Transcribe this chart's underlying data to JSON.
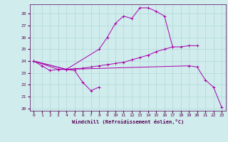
{
  "background_color": "#d0ecec",
  "grid_color": "#b0d8d8",
  "line_color": "#aa00aa",
  "xlabel": "Windchill (Refroidissement éolien,°C)",
  "xlim": [
    -0.5,
    23.5
  ],
  "ylim": [
    19.8,
    28.8
  ],
  "yticks": [
    20,
    21,
    22,
    23,
    24,
    25,
    26,
    27,
    28
  ],
  "xticks": [
    0,
    1,
    2,
    3,
    4,
    5,
    6,
    7,
    8,
    9,
    10,
    11,
    12,
    13,
    14,
    15,
    16,
    17,
    18,
    19,
    20,
    21,
    22,
    23
  ],
  "s1_x": [
    0,
    1,
    2,
    3,
    4,
    5,
    6,
    7,
    8
  ],
  "s1_y": [
    24.0,
    23.6,
    23.2,
    23.3,
    23.3,
    23.2,
    22.2,
    21.5,
    21.8
  ],
  "s2_x": [
    0,
    3,
    4,
    8,
    9,
    10,
    11,
    12,
    13,
    14,
    15,
    16,
    17
  ],
  "s2_y": [
    24.0,
    23.3,
    23.3,
    25.0,
    26.0,
    27.2,
    27.8,
    27.6,
    28.5,
    28.5,
    28.2,
    27.8,
    25.2
  ],
  "s3_x": [
    0,
    4,
    5,
    6,
    7,
    8,
    9,
    10,
    11,
    12,
    13,
    14,
    15,
    16,
    17,
    18,
    19,
    20
  ],
  "s3_y": [
    24.0,
    23.3,
    23.35,
    23.4,
    23.5,
    23.6,
    23.7,
    23.8,
    23.9,
    24.1,
    24.3,
    24.5,
    24.8,
    25.0,
    25.2,
    25.2,
    25.3,
    25.3
  ],
  "s4_x": [
    0,
    4,
    19,
    20,
    21,
    22,
    23
  ],
  "s4_y": [
    24.0,
    23.3,
    23.6,
    23.5,
    22.4,
    21.8,
    20.1
  ]
}
